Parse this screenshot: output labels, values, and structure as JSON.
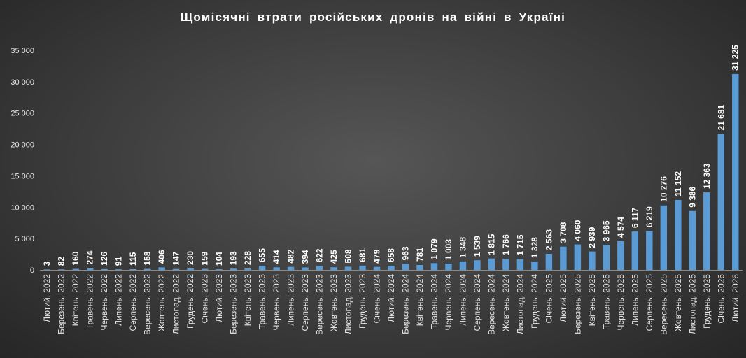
{
  "chart_data": {
    "type": "bar",
    "title": "Щомісячні  втрати  російських  дронів  на  війні  в  Україні",
    "xlabel": "",
    "ylabel": "",
    "ylim": [
      0,
      35000
    ],
    "yticks": [
      0,
      5000,
      10000,
      15000,
      20000,
      25000,
      30000,
      35000
    ],
    "ytick_labels": [
      "0",
      "5 000",
      "10 000",
      "15 000",
      "20 000",
      "25 000",
      "30 000",
      "35 000"
    ],
    "grid": false,
    "legend": "none",
    "bar_color": "#5b9bd5",
    "categories": [
      "Лютий, 2022",
      "Березень, 2022",
      "Квітень, 2022",
      "Травень, 2022",
      "Червень, 2022",
      "Липень, 2022",
      "Серпень, 2022",
      "Вересень, 2022",
      "Жовтень, 2022",
      "Листопад, 2022",
      "Грудень, 2022",
      "Січень, 2023",
      "Лютий, 2023",
      "Березень, 2023",
      "Квітень, 2023",
      "Травень, 2023",
      "Червень, 2023",
      "Липень, 2023",
      "Серпень, 2023",
      "Вересень, 2023",
      "Жовтень, 2023",
      "Листопад, 2023",
      "Грудень, 2023",
      "Січень, 2024",
      "Лютий, 2024",
      "Березень, 2024",
      "Квітень, 2024",
      "Травень, 2024",
      "Червень, 2024",
      "Липень, 2024",
      "Серпень, 2024",
      "Вересень, 2024",
      "Жовтень, 2024",
      "Листопад, 2024",
      "Грудень, 2024",
      "Січень, 2025",
      "Лютий, 2025",
      "Березень, 2025",
      "Квітень, 2025",
      "Травень, 2025",
      "Червень, 2025",
      "Липень, 2025",
      "Серпень, 2025",
      "Вересень, 2025",
      "Жовтень, 2025",
      "Листопад, 2025",
      "Грудень, 2025",
      "Січень, 2026",
      "Лютий, 2026"
    ],
    "values": [
      3,
      82,
      160,
      274,
      126,
      91,
      115,
      158,
      406,
      147,
      230,
      159,
      104,
      193,
      228,
      655,
      414,
      482,
      394,
      622,
      425,
      508,
      681,
      479,
      658,
      963,
      781,
      1079,
      1003,
      1348,
      1539,
      1815,
      1766,
      1715,
      1328,
      2563,
      3708,
      4060,
      2939,
      3965,
      4574,
      6117,
      6219,
      10276,
      11152,
      9386,
      12363,
      21681,
      31225
    ],
    "data_labels": [
      "3",
      "82",
      "160",
      "274",
      "126",
      "91",
      "115",
      "158",
      "406",
      "147",
      "230",
      "159",
      "104",
      "193",
      "228",
      "655",
      "414",
      "482",
      "394",
      "622",
      "425",
      "508",
      "681",
      "479",
      "658",
      "963",
      "781",
      "1 079",
      "1 003",
      "1 348",
      "1 539",
      "1 815",
      "1 766",
      "1 715",
      "1 328",
      "2 563",
      "3 708",
      "4 060",
      "2 939",
      "3 965",
      "4 574",
      "6 117",
      "6 219",
      "10 276",
      "11 152",
      "9 386",
      "12 363",
      "21 681",
      "31 225"
    ]
  }
}
